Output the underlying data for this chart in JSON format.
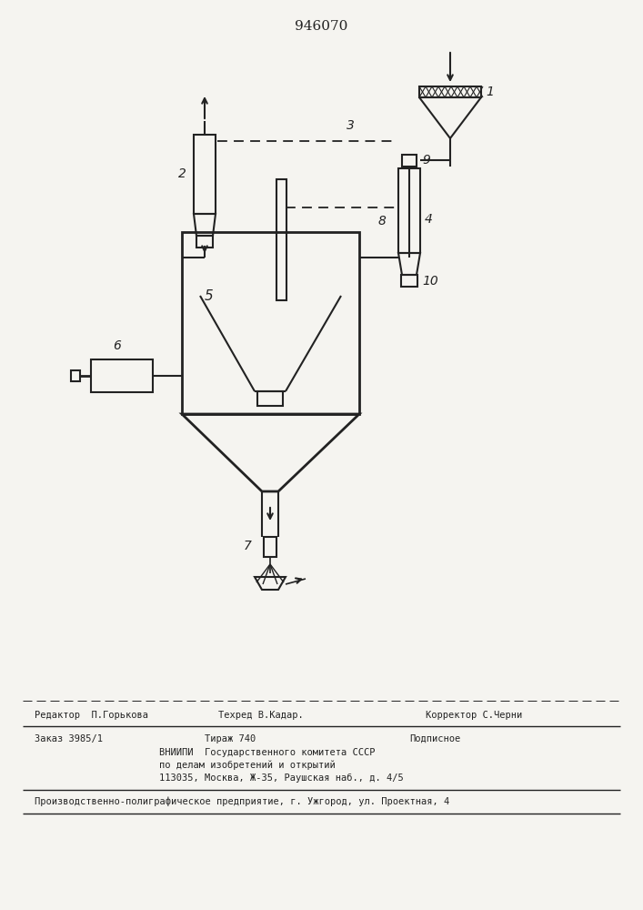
{
  "title": "946070",
  "bg_color": "#f5f4f0",
  "line_color": "#222222",
  "footer_line1_left": "Редактор  П.Горькова",
  "footer_line1_mid": "Техред В.Кадар.",
  "footer_line1_right": "Корректор С.Черни",
  "footer_line2_left": "Заказ 3985/1",
  "footer_line2_mid1": "Тираж 740",
  "footer_line2_mid2": "Подписное",
  "footer_vniipi": "ВНИИПИ  Государственного комитета СССР",
  "footer_izobr": "по делам изобретений и открытий",
  "footer_addr": "113035, Москва, Ж-35, Раушская наб., д. 4/5",
  "footer_line3": "Производственно-полиграфическое предприятие, г. Ужгород, ул. Проектная, 4"
}
